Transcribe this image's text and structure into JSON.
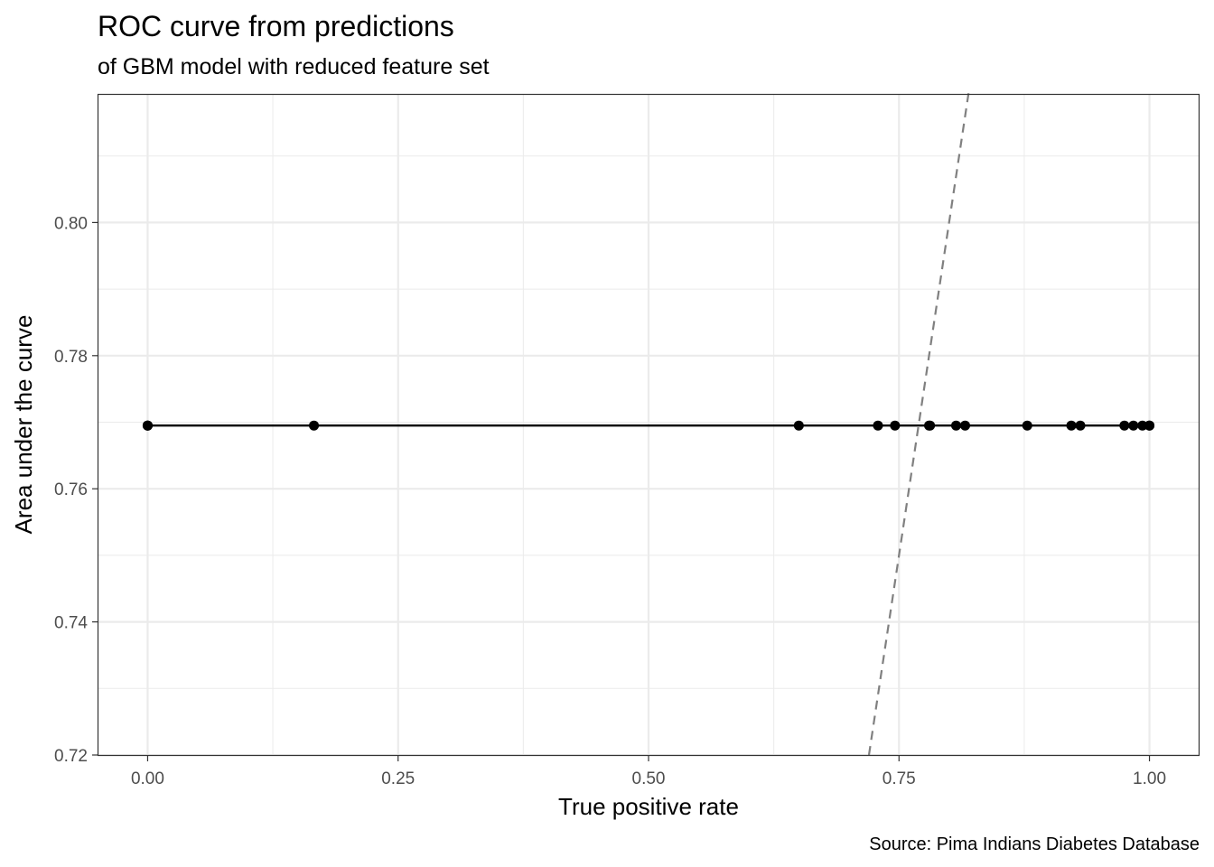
{
  "chart_data": {
    "type": "line",
    "title": "ROC curve from predictions",
    "subtitle": "of GBM model with reduced feature set",
    "xlabel": "True positive rate",
    "ylabel": "Area under the curve",
    "caption": "Source: Pima Indians Diabetes Database",
    "xlim": [
      -0.05,
      1.05
    ],
    "ylim": [
      0.72,
      0.82
    ],
    "x_ticks": [
      0.0,
      0.25,
      0.5,
      0.75,
      1.0
    ],
    "x_tick_labels": [
      "0.00",
      "0.25",
      "0.50",
      "0.75",
      "1.00"
    ],
    "y_ticks": [
      0.72,
      0.74,
      0.76,
      0.78,
      0.8
    ],
    "y_tick_labels": [
      "0.72",
      "0.74",
      "0.76",
      "0.78",
      "0.80"
    ],
    "grid": true,
    "series": [
      {
        "style": "solid line with points",
        "color": "#000000",
        "x": [
          0.0,
          0.0,
          0.0,
          0.166,
          0.65,
          0.729,
          0.746,
          0.78,
          0.781,
          0.807,
          0.816,
          0.878,
          0.922,
          0.931,
          0.975,
          0.984,
          0.993,
          1.0,
          1.0
        ],
        "y": [
          0.7695,
          0.7695,
          0.7695,
          0.7695,
          0.7695,
          0.7695,
          0.7695,
          0.7695,
          0.7695,
          0.7695,
          0.7695,
          0.7695,
          0.7695,
          0.7695,
          0.7695,
          0.7695,
          0.7695,
          0.7695,
          0.7695
        ]
      },
      {
        "style": "dashed reference line",
        "color": "#808080",
        "x": [
          0.72,
          0.82
        ],
        "y": [
          0.72,
          0.82
        ]
      }
    ]
  }
}
